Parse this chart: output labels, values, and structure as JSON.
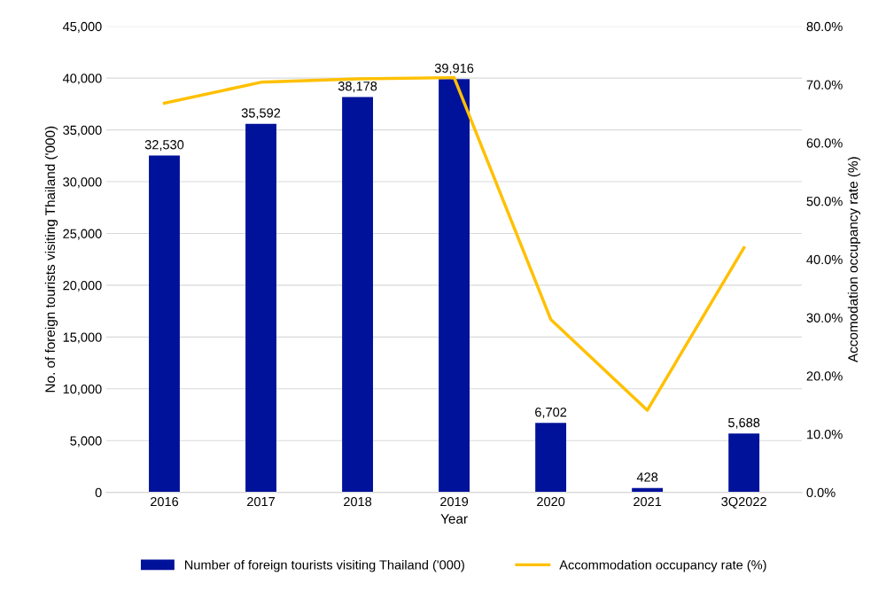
{
  "chart_data": {
    "type": "bar",
    "xlabel": "Year",
    "ylabel": "No. of foreign tourists visiting Thailand ('000)",
    "y2label": "Accomodation occupancy rate (%)",
    "categories": [
      "2016",
      "2017",
      "2018",
      "2019",
      "2020",
      "2021",
      "3Q2022"
    ],
    "series": [
      {
        "name": "Number of foreign tourists visiting Thailand ('000)",
        "color": "#00129a",
        "values": [
          32530,
          35592,
          38178,
          39916,
          6702,
          428,
          5688
        ]
      },
      {
        "name": "Accommodation occupancy rate (%)",
        "type": "line",
        "axis": "y2",
        "color": "#ffc000",
        "values": [
          66.8,
          70.4,
          71.0,
          71.2,
          29.7,
          14.1,
          42.0
        ]
      }
    ],
    "value_labels": [
      "32,530",
      "35,592",
      "38,178",
      "39,916",
      "6,702",
      "428",
      "5,688"
    ],
    "ylim": [
      0,
      45000
    ],
    "yticks": [
      {
        "value": 0,
        "label": "0"
      },
      {
        "value": 5000,
        "label": "5,000"
      },
      {
        "value": 10000,
        "label": "10,000"
      },
      {
        "value": 15000,
        "label": "15,000"
      },
      {
        "value": 20000,
        "label": "20,000"
      },
      {
        "value": 25000,
        "label": "25,000"
      },
      {
        "value": 30000,
        "label": "30,000"
      },
      {
        "value": 35000,
        "label": "35,000"
      },
      {
        "value": 40000,
        "label": "40,000"
      },
      {
        "value": 45000,
        "label": "45,000"
      }
    ],
    "y2lim": [
      0,
      80
    ],
    "y2ticks": [
      {
        "value": 0,
        "label": "0.0%"
      },
      {
        "value": 10,
        "label": "10.0%"
      },
      {
        "value": 20,
        "label": "20.0%"
      },
      {
        "value": 30,
        "label": "30.0%"
      },
      {
        "value": 40,
        "label": "40.0%"
      },
      {
        "value": 50,
        "label": "50.0%"
      },
      {
        "value": 60,
        "label": "60.0%"
      },
      {
        "value": 70,
        "label": "70.0%"
      },
      {
        "value": 80,
        "label": "80.0%"
      }
    ],
    "grid": "y",
    "legend": "bottom",
    "marker": "none",
    "line_style": "solid"
  }
}
